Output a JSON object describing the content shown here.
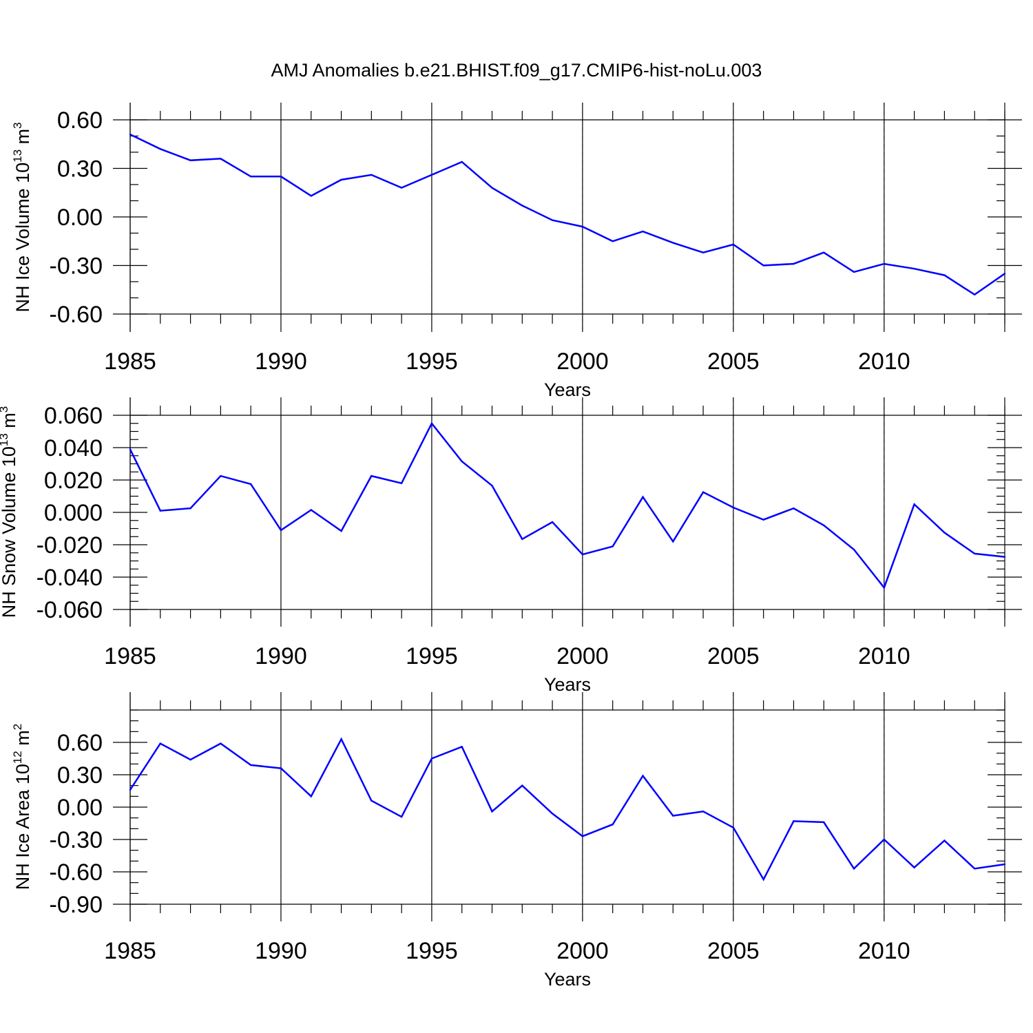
{
  "figure_title": "AMJ Anomalies b.e21.BHIST.f09_g17.CMIP6-hist-noLu.003",
  "colors": {
    "line": "#0000ff",
    "frame": "#000000",
    "grid": "#555555"
  },
  "chart_data": [
    {
      "type": "line",
      "name": "ice-volume",
      "xlabel": "Years",
      "ylabel_main": "NH Ice Volume 10",
      "ylabel_exp": "13",
      "ylabel_unit": " m",
      "ylabel_unit_exp": "3",
      "xlim": [
        1985,
        2014
      ],
      "ylim": [
        -0.6,
        0.6
      ],
      "yticks": [
        -0.6,
        -0.3,
        0.0,
        0.3,
        0.6
      ],
      "ytick_labels": [
        "-0.60",
        "-0.30",
        "0.00",
        "0.30",
        "0.60"
      ],
      "yminor_step": 0.1,
      "xticks": [
        1985,
        1990,
        1995,
        2000,
        2005,
        2010
      ],
      "xtick_labels": [
        "1985",
        "1990",
        "1995",
        "2000",
        "2005",
        "2010"
      ],
      "grid_x": [
        1990,
        1995,
        2000,
        2005,
        2010
      ],
      "x": [
        1985,
        1986,
        1987,
        1988,
        1989,
        1990,
        1991,
        1992,
        1993,
        1994,
        1995,
        1996,
        1997,
        1998,
        1999,
        2000,
        2001,
        2002,
        2003,
        2004,
        2005,
        2006,
        2007,
        2008,
        2009,
        2010,
        2011,
        2012,
        2013,
        2014
      ],
      "values": [
        0.51,
        0.42,
        0.35,
        0.36,
        0.25,
        0.25,
        0.13,
        0.23,
        0.26,
        0.18,
        0.26,
        0.34,
        0.18,
        0.07,
        -0.02,
        -0.06,
        -0.15,
        -0.09,
        -0.16,
        -0.22,
        -0.17,
        -0.3,
        -0.29,
        -0.22,
        -0.34,
        -0.29,
        -0.32,
        -0.36,
        -0.48,
        -0.35
      ]
    },
    {
      "type": "line",
      "name": "snow-volume",
      "xlabel": "Years",
      "ylabel_main": "NH Snow Volume 10",
      "ylabel_exp": "13",
      "ylabel_unit": " m",
      "ylabel_unit_exp": "3",
      "xlim": [
        1985,
        2014
      ],
      "ylim": [
        -0.06,
        0.06
      ],
      "yticks": [
        -0.06,
        -0.04,
        -0.02,
        0.0,
        0.02,
        0.04,
        0.06
      ],
      "ytick_labels": [
        "-0.060",
        "-0.040",
        "-0.020",
        "0.000",
        "0.020",
        "0.040",
        "0.060"
      ],
      "yminor_step": 0.005,
      "xticks": [
        1985,
        1990,
        1995,
        2000,
        2005,
        2010
      ],
      "xtick_labels": [
        "1985",
        "1990",
        "1995",
        "2000",
        "2005",
        "2010"
      ],
      "grid_x": [
        1990,
        1995,
        2000,
        2005,
        2010
      ],
      "x": [
        1985,
        1986,
        1987,
        1988,
        1989,
        1990,
        1991,
        1992,
        1993,
        1994,
        1995,
        1996,
        1997,
        1998,
        1999,
        2000,
        2001,
        2002,
        2003,
        2004,
        2005,
        2006,
        2007,
        2008,
        2009,
        2010,
        2011,
        2012,
        2013,
        2014
      ],
      "values": [
        0.039,
        0.001,
        0.0025,
        0.0225,
        0.0175,
        -0.011,
        0.0015,
        -0.0115,
        0.0225,
        0.018,
        0.055,
        0.0315,
        0.0165,
        -0.0165,
        -0.006,
        -0.026,
        -0.021,
        0.0095,
        -0.018,
        0.0125,
        0.003,
        -0.0045,
        0.0025,
        -0.008,
        -0.023,
        -0.0465,
        0.005,
        -0.0125,
        -0.0255,
        -0.0275
      ]
    },
    {
      "type": "line",
      "name": "ice-area",
      "xlabel": "Years",
      "ylabel_main": "NH Ice Area 10",
      "ylabel_exp": "12",
      "ylabel_unit": " m",
      "ylabel_unit_exp": "2",
      "xlim": [
        1985,
        2014
      ],
      "ylim": [
        -0.9,
        0.9
      ],
      "yticks": [
        -0.9,
        -0.6,
        -0.3,
        0.0,
        0.3,
        0.6
      ],
      "ytick_labels": [
        "-0.90",
        "-0.60",
        "-0.30",
        "0.00",
        "0.30",
        "0.60"
      ],
      "yminor_step": 0.1,
      "xticks": [
        1985,
        1990,
        1995,
        2000,
        2005,
        2010
      ],
      "xtick_labels": [
        "1985",
        "1990",
        "1995",
        "2000",
        "2005",
        "2010"
      ],
      "grid_x": [
        1990,
        1995,
        2000,
        2005,
        2010
      ],
      "x": [
        1985,
        1986,
        1987,
        1988,
        1989,
        1990,
        1991,
        1992,
        1993,
        1994,
        1995,
        1996,
        1997,
        1998,
        1999,
        2000,
        2001,
        2002,
        2003,
        2004,
        2005,
        2006,
        2007,
        2008,
        2009,
        2010,
        2011,
        2012,
        2013,
        2014
      ],
      "values": [
        0.16,
        0.59,
        0.44,
        0.59,
        0.39,
        0.36,
        0.1,
        0.63,
        0.06,
        -0.09,
        0.45,
        0.56,
        -0.04,
        0.2,
        -0.06,
        -0.27,
        -0.16,
        0.29,
        -0.08,
        -0.04,
        -0.19,
        -0.67,
        -0.13,
        -0.14,
        -0.57,
        -0.3,
        -0.56,
        -0.31,
        -0.57,
        -0.53
      ]
    }
  ]
}
